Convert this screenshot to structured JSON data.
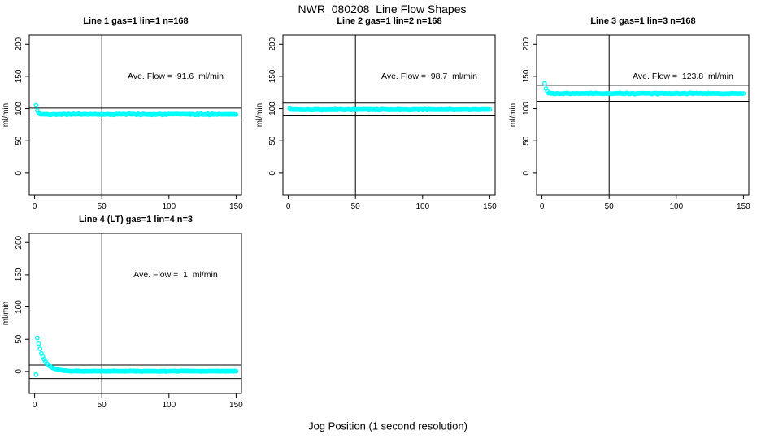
{
  "figure": {
    "title": "NWR_080208  Line Flow Shapes",
    "xlabel": "Jog Position (1 second resolution)",
    "background": "#ffffff",
    "point_color": "#00ffff",
    "line_color": "#000000"
  },
  "axes": {
    "ylab": "ml/min",
    "x_ticks": [
      0,
      50,
      100,
      150
    ],
    "y_ticks": [
      0,
      50,
      100,
      150,
      200
    ],
    "x_range": [
      -4,
      154
    ],
    "y_range": [
      -34.2,
      214.2
    ],
    "grid": false
  },
  "chart_data": [
    {
      "type": "scatter",
      "title": "Line 1 gas=1 lin=1 n=168",
      "annotation": "Ave. Flow =  91.6  ml/min",
      "ave_flow_ml_min": 91.6,
      "n": 168,
      "vline_x": 50,
      "ref_lines_y": [
        100.8,
        82.4
      ],
      "transient_points": [
        [
          1,
          105
        ],
        [
          2,
          97
        ],
        [
          3,
          93.5
        ]
      ],
      "steady": {
        "x_from": 4,
        "x_to": 150,
        "value": 91.2,
        "noise": 1.3
      }
    },
    {
      "type": "scatter",
      "title": "Line 2 gas=1 lin=2 n=168",
      "annotation": "Ave. Flow =  98.7  ml/min",
      "ave_flow_ml_min": 98.7,
      "n": 168,
      "vline_x": 50,
      "ref_lines_y": [
        108.6,
        88.8
      ],
      "transient_points": [
        [
          1,
          100.5
        ]
      ],
      "steady": {
        "x_from": 2,
        "x_to": 150,
        "value": 98.5,
        "noise": 1.2
      }
    },
    {
      "type": "scatter",
      "title": "Line 3 gas=1 lin=3 n=168",
      "annotation": "Ave. Flow =  123.8  ml/min",
      "ave_flow_ml_min": 123.8,
      "n": 168,
      "vline_x": 50,
      "ref_lines_y": [
        136.2,
        111.4
      ],
      "transient_points": [
        [
          2,
          139
        ],
        [
          3,
          131
        ],
        [
          4,
          127
        ]
      ],
      "steady": {
        "x_from": 5,
        "x_to": 150,
        "value": 123.4,
        "noise": 1.2
      }
    },
    {
      "type": "scatter",
      "title": "Line 4 (LT) gas=1 lin=4 n=3",
      "annotation": "Ave. Flow =  1  ml/min",
      "ave_flow_ml_min": 1,
      "n": 3,
      "vline_x": 50,
      "ref_lines_y": [
        10,
        -11
      ],
      "transient_points": [
        [
          1,
          -5
        ],
        [
          2,
          52
        ],
        [
          3,
          43
        ],
        [
          4,
          35
        ],
        [
          5,
          28
        ],
        [
          6,
          23
        ],
        [
          7,
          19
        ],
        [
          8,
          15.5
        ],
        [
          9,
          12.5
        ],
        [
          10,
          10.5
        ],
        [
          11,
          8.5
        ],
        [
          12,
          7
        ],
        [
          13,
          6
        ],
        [
          14,
          5
        ],
        [
          15,
          4.2
        ],
        [
          16,
          3.5
        ],
        [
          17,
          3
        ],
        [
          18,
          2.5
        ],
        [
          19,
          2.1
        ],
        [
          20,
          1.8
        ],
        [
          21,
          1.5
        ],
        [
          22,
          1.3
        ],
        [
          23,
          1.1
        ],
        [
          24,
          1
        ],
        [
          25,
          0.9
        ]
      ],
      "steady": {
        "x_from": 26,
        "x_to": 150,
        "value": 0.4,
        "noise": 0.8
      }
    }
  ]
}
